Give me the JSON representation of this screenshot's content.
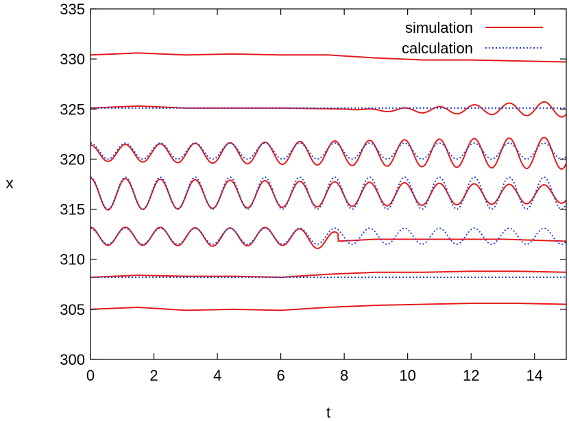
{
  "chart_data": {
    "type": "line",
    "title": "",
    "xlabel": "t",
    "ylabel": "x",
    "xlim": [
      0,
      15
    ],
    "ylim": [
      300,
      335
    ],
    "xticks": [
      0,
      2,
      4,
      6,
      8,
      10,
      12,
      14
    ],
    "yticks": [
      300,
      305,
      310,
      315,
      320,
      325,
      330,
      335
    ],
    "grid": false,
    "legend_position": "top-right",
    "legend": [
      {
        "label": "simulation",
        "color": "#e41a1c",
        "style": "solid"
      },
      {
        "label": "calculation",
        "color": "#1f3fd6",
        "style": "dotted"
      }
    ],
    "series": [
      {
        "name": "simulation",
        "role": "particle-1",
        "x": [
          0,
          1.5,
          3,
          4.5,
          6,
          7.5,
          9,
          10.5,
          12,
          13.5,
          15
        ],
        "y": [
          305.0,
          305.2,
          304.9,
          305.0,
          304.9,
          305.2,
          305.4,
          305.5,
          305.6,
          305.6,
          305.5
        ]
      },
      {
        "name": "simulation",
        "role": "particle-2",
        "x": [
          0,
          1.5,
          3,
          4.5,
          6,
          7.5,
          9,
          10.5,
          12,
          13.5,
          15
        ],
        "y": [
          308.2,
          308.4,
          308.3,
          308.3,
          308.2,
          308.5,
          308.7,
          308.7,
          308.8,
          308.8,
          308.7
        ]
      },
      {
        "name": "calculation",
        "role": "particle-2",
        "x": [
          0,
          15
        ],
        "y": [
          308.2,
          308.2
        ]
      },
      {
        "name": "simulation",
        "role": "particle-3",
        "x": [
          0,
          2,
          4,
          6,
          7.8,
          9,
          11,
          13,
          15
        ],
        "y": [
          312.3,
          312.3,
          312.2,
          312.3,
          311.8,
          312.0,
          312.0,
          312.0,
          311.8
        ],
        "oscillation": {
          "amplitude": 0.9,
          "period": 1.1,
          "until_t": 7.8
        }
      },
      {
        "name": "calculation",
        "role": "particle-3",
        "x": [
          0,
          15
        ],
        "y": [
          312.3,
          312.3
        ],
        "oscillation": {
          "amplitude": 0.8,
          "period": 1.1
        }
      },
      {
        "name": "simulation",
        "role": "particle-4",
        "x": [
          0,
          15
        ],
        "y": [
          316.5,
          316.5
        ],
        "oscillation": {
          "amplitude": 1.6,
          "period": 1.1,
          "amplitude_end": 0.9
        }
      },
      {
        "name": "calculation",
        "role": "particle-4",
        "x": [
          0,
          15
        ],
        "y": [
          316.6,
          316.6
        ],
        "oscillation": {
          "amplitude": 1.6,
          "period": 1.1
        }
      },
      {
        "name": "simulation",
        "role": "particle-5",
        "x": [
          0,
          15
        ],
        "y": [
          320.6,
          320.6
        ],
        "oscillation": {
          "amplitude": 0.8,
          "period": 1.1,
          "amplitude_end": 1.6
        }
      },
      {
        "name": "calculation",
        "role": "particle-5",
        "x": [
          0,
          15
        ],
        "y": [
          320.8,
          320.8
        ],
        "oscillation": {
          "amplitude": 0.8,
          "period": 1.1
        }
      },
      {
        "name": "simulation",
        "role": "particle-6",
        "x": [
          0,
          1.5,
          3,
          6,
          8,
          9,
          11,
          13,
          15
        ],
        "y": [
          325.1,
          325.3,
          325.1,
          325.1,
          325.0,
          324.9,
          324.9,
          325.0,
          325.0
        ],
        "oscillation": {
          "amplitude": 0.0,
          "period": 1.1,
          "amplitude_end": 0.8,
          "from_t": 8
        }
      },
      {
        "name": "calculation",
        "role": "particle-6",
        "x": [
          0,
          15
        ],
        "y": [
          325.1,
          325.1
        ]
      },
      {
        "name": "simulation",
        "role": "particle-7",
        "x": [
          0,
          1.5,
          3,
          4.5,
          6,
          7.5,
          9,
          10.5,
          12,
          13.5,
          15
        ],
        "y": [
          330.4,
          330.6,
          330.4,
          330.5,
          330.4,
          330.4,
          330.1,
          329.9,
          329.9,
          329.8,
          329.7
        ]
      }
    ]
  }
}
